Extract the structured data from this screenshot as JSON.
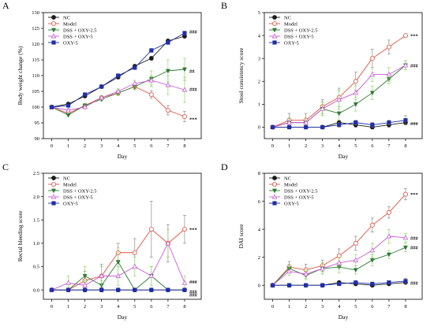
{
  "figure": {
    "colors": {
      "NC": "#1a1a1a",
      "Model": "#e0523f",
      "DSS + OXY-2.5": "#2e7d32",
      "DSS + OXY-5": "#c75bd6",
      "OXY-5": "#1f2fa8",
      "error": "#7fcf4f",
      "error_dark": "#7a7a7a"
    },
    "legend": [
      "NC",
      "Model",
      "DSS + OXY-2.5",
      "DSS + OXY-5",
      "OXY-5"
    ]
  },
  "chart_data": [
    {
      "panel": "A",
      "type": "line",
      "xlabel": "Day",
      "ylabel": "Body weight change (%)",
      "xticks": [
        0,
        1,
        2,
        3,
        4,
        5,
        6,
        7,
        8
      ],
      "yticks": [
        90,
        95,
        100,
        105,
        110,
        115,
        120,
        125,
        130
      ],
      "ylim": [
        90,
        130
      ],
      "legend_position": "top-left",
      "series": [
        {
          "name": "NC",
          "marker": "filled-circle",
          "values": [
            100,
            101,
            103.5,
            106.5,
            109.5,
            113,
            115.5,
            121,
            122.5
          ],
          "err": [
            0.3,
            0.3,
            0.4,
            0.4,
            0.5,
            0.5,
            0.6,
            0.6,
            0.6
          ]
        },
        {
          "name": "Model",
          "marker": "open-circle",
          "values": [
            100,
            98,
            100.5,
            103,
            104.5,
            106.5,
            104,
            99,
            97
          ],
          "err": [
            0.3,
            0.5,
            0.6,
            0.6,
            0.7,
            0.9,
            1.2,
            1.5,
            1.6
          ]
        },
        {
          "name": "DSS + OXY-2.5",
          "marker": "filled-triangle-down",
          "values": [
            100,
            97.5,
            100.5,
            102.5,
            104.5,
            106.5,
            109,
            111.5,
            112
          ],
          "err": [
            0.3,
            0.5,
            0.6,
            0.6,
            0.8,
            1,
            2.5,
            3.5,
            3.5
          ]
        },
        {
          "name": "DSS + OXY-5",
          "marker": "open-triangle-up",
          "values": [
            100,
            99,
            100,
            103,
            105,
            107.5,
            108.5,
            107,
            105.5
          ],
          "err": [
            0.3,
            0.5,
            0.6,
            0.6,
            0.8,
            1,
            1.5,
            3,
            4
          ]
        },
        {
          "name": "OXY-5",
          "marker": "filled-square",
          "values": [
            100,
            100.5,
            104,
            106.5,
            110,
            112.5,
            118,
            120.5,
            123.5
          ],
          "err": [
            0.3,
            0.3,
            0.4,
            0.4,
            0.5,
            0.5,
            0.6,
            0.6,
            0.6
          ]
        }
      ],
      "annotations": [
        {
          "text": "###",
          "series": "OXY-5",
          "x": 8
        },
        {
          "text": "##",
          "series": "DSS + OXY-2.5",
          "x": 8
        },
        {
          "text": "###",
          "series": "DSS + OXY-5",
          "x": 8
        },
        {
          "text": "***",
          "series": "Model",
          "x": 8
        }
      ]
    },
    {
      "panel": "B",
      "type": "line",
      "xlabel": "Day",
      "ylabel": "Stool consistency score",
      "xticks": [
        0,
        1,
        2,
        3,
        4,
        5,
        6,
        7,
        8
      ],
      "yticks": [
        0,
        1,
        2,
        3,
        4,
        5
      ],
      "ylim": [
        -0.5,
        5
      ],
      "legend_position": "top-left",
      "series": [
        {
          "name": "NC",
          "marker": "filled-circle",
          "values": [
            0,
            0,
            0,
            0,
            0.2,
            0.1,
            0,
            0.1,
            0.2
          ],
          "err": [
            0,
            0,
            0,
            0,
            0.1,
            0.1,
            0,
            0.1,
            0.1
          ]
        },
        {
          "name": "Model",
          "marker": "open-circle",
          "values": [
            0,
            0.3,
            0.3,
            0.9,
            1.3,
            2,
            3,
            3.5,
            4
          ],
          "err": [
            0,
            0.3,
            0.3,
            0.3,
            0.4,
            0.4,
            0.4,
            0.3,
            0
          ]
        },
        {
          "name": "DSS + OXY-2.5",
          "marker": "filled-triangle-down",
          "values": [
            0,
            0.2,
            0.2,
            0.8,
            0.6,
            1,
            1.5,
            2.1,
            2.7
          ],
          "err": [
            0,
            0.2,
            0.2,
            0.3,
            0.3,
            0.3,
            0.3,
            0.2,
            0.2
          ]
        },
        {
          "name": "DSS + OXY-5",
          "marker": "open-triangle-up",
          "values": [
            0,
            0.2,
            0.2,
            0.8,
            1.2,
            1.5,
            2.3,
            2.3,
            2.7
          ],
          "err": [
            0,
            0.2,
            0.2,
            0.3,
            0.4,
            0.3,
            0.3,
            0.3,
            0.2
          ]
        },
        {
          "name": "OXY-5",
          "marker": "filled-square",
          "values": [
            0,
            0,
            0,
            0,
            0.1,
            0.2,
            0.1,
            0.2,
            0.3
          ],
          "err": [
            0,
            0,
            0,
            0,
            0.1,
            0.1,
            0.1,
            0.1,
            0.2
          ]
        }
      ],
      "annotations": [
        {
          "text": "***",
          "series": "Model",
          "x": 8
        },
        {
          "text": "###",
          "series": "DSS + OXY-5",
          "x": 8
        },
        {
          "text": "###",
          "series": "OXY-5",
          "x": 8
        }
      ]
    },
    {
      "panel": "C",
      "type": "line",
      "xlabel": "Day",
      "ylabel": "Rectal bleeding score",
      "xticks": [
        0,
        1,
        2,
        3,
        4,
        5,
        6,
        7,
        8
      ],
      "yticks": [
        0.0,
        0.5,
        1.0,
        1.5,
        2.0,
        2.5
      ],
      "ylim": [
        -0.2,
        2.5
      ],
      "legend_position": "top-left",
      "series": [
        {
          "name": "NC",
          "marker": "filled-circle",
          "values": [
            0,
            0,
            0,
            0,
            0,
            0,
            0,
            0,
            0
          ],
          "err": [
            0,
            0,
            0,
            0,
            0,
            0,
            0,
            0,
            0
          ]
        },
        {
          "name": "Model",
          "marker": "open-circle",
          "values": [
            0,
            0,
            0.2,
            0.3,
            0.8,
            0.8,
            1.3,
            1.0,
            1.3
          ],
          "err": [
            0,
            0,
            0.2,
            0.25,
            0.2,
            0.3,
            0.6,
            0.4,
            0.3
          ]
        },
        {
          "name": "DSS + OXY-2.5",
          "marker": "filled-triangle-down",
          "values": [
            0,
            0,
            0.3,
            0.1,
            0.6,
            0,
            0.3,
            0,
            0
          ],
          "err": [
            0,
            0,
            0.2,
            0.1,
            0.3,
            0,
            0.2,
            0,
            0
          ]
        },
        {
          "name": "DSS + OXY-5",
          "marker": "open-triangle-up",
          "values": [
            0,
            0.15,
            0.1,
            0.3,
            0.3,
            0.5,
            0.3,
            1.0,
            0.15
          ],
          "err": [
            0,
            0.15,
            0.1,
            0.2,
            0.2,
            0.2,
            0.2,
            0.3,
            0.15
          ]
        },
        {
          "name": "OXY-5",
          "marker": "filled-square",
          "values": [
            0,
            0,
            0,
            0,
            0,
            0,
            0,
            0,
            0
          ],
          "err": [
            0,
            0,
            0,
            0,
            0,
            0,
            0,
            0,
            0
          ]
        }
      ],
      "annotations": [
        {
          "text": "***",
          "series": "Model",
          "x": 8
        },
        {
          "text": "###",
          "series": "DSS + OXY-5",
          "x": 8
        },
        {
          "text": "###",
          "series": "DSS + OXY-2.5",
          "x": 8
        },
        {
          "text": "###",
          "series": "OXY-5",
          "x": 8
        }
      ]
    },
    {
      "panel": "D",
      "type": "line",
      "xlabel": "Day",
      "ylabel": "DAI score",
      "xticks": [
        0,
        1,
        2,
        3,
        4,
        5,
        6,
        7,
        8
      ],
      "yticks": [
        0,
        2,
        4,
        6,
        8
      ],
      "ylim": [
        -1,
        8
      ],
      "legend_position": "top-left",
      "series": [
        {
          "name": "NC",
          "marker": "filled-circle",
          "values": [
            0,
            0,
            0,
            0,
            0.2,
            0.1,
            0,
            0.1,
            0.2
          ],
          "err": [
            0,
            0,
            0,
            0,
            0.1,
            0.1,
            0,
            0.1,
            0.1
          ]
        },
        {
          "name": "Model",
          "marker": "open-circle",
          "values": [
            0,
            1.3,
            1.1,
            1.4,
            2.1,
            3,
            4.3,
            5.2,
            6.5
          ],
          "err": [
            0,
            0.4,
            0.4,
            0.4,
            0.5,
            0.5,
            0.5,
            0.4,
            0.4
          ]
        },
        {
          "name": "DSS + OXY-2.5",
          "marker": "filled-triangle-down",
          "values": [
            0,
            1.2,
            0.7,
            1.2,
            1.3,
            1.1,
            1.8,
            2.2,
            2.7
          ],
          "err": [
            0,
            0.3,
            0.3,
            0.4,
            0.4,
            0.3,
            0.4,
            0.3,
            0.3
          ]
        },
        {
          "name": "DSS + OXY-5",
          "marker": "open-triangle-up",
          "values": [
            0,
            1.0,
            0.8,
            1.2,
            1.6,
            1.8,
            2.5,
            3.5,
            3.4
          ],
          "err": [
            0,
            0.3,
            0.3,
            0.4,
            0.4,
            0.4,
            0.5,
            0.5,
            0.3
          ]
        },
        {
          "name": "OXY-5",
          "marker": "filled-square",
          "values": [
            0,
            0,
            0,
            0,
            0.1,
            0.2,
            0.1,
            0.2,
            0.3
          ],
          "err": [
            0,
            0,
            0,
            0,
            0.1,
            0.1,
            0.1,
            0.1,
            0.2
          ]
        }
      ],
      "annotations": [
        {
          "text": "***",
          "series": "Model",
          "x": 8
        },
        {
          "text": "###",
          "series": "DSS + OXY-5",
          "x": 8
        },
        {
          "text": "###",
          "series": "DSS + OXY-2.5",
          "x": 8
        },
        {
          "text": "###",
          "series": "OXY-5",
          "x": 8
        }
      ]
    }
  ]
}
